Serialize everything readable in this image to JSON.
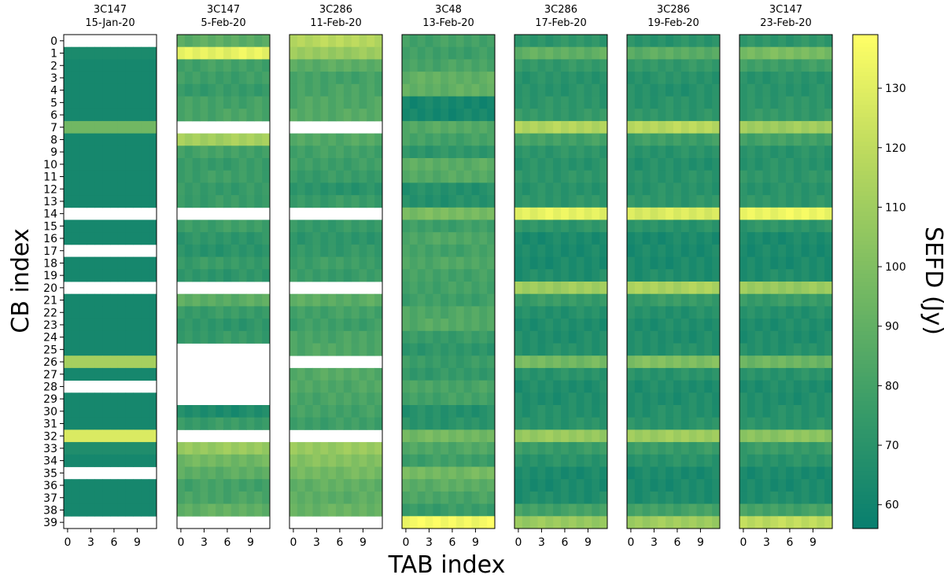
{
  "chart_data": {
    "type": "heatmap",
    "xlabel": "TAB index",
    "ylabel": "CB index",
    "colorbar_label": "SEFD (Jy)",
    "colorbar_range": [
      56,
      139
    ],
    "colorbar_ticks": [
      60,
      70,
      80,
      90,
      100,
      110,
      120,
      130
    ],
    "x_ticks": [
      0,
      3,
      6,
      9
    ],
    "y_ticks": [
      0,
      1,
      2,
      3,
      4,
      5,
      6,
      7,
      8,
      9,
      10,
      11,
      12,
      13,
      14,
      15,
      16,
      17,
      18,
      19,
      20,
      21,
      22,
      23,
      24,
      25,
      26,
      27,
      28,
      29,
      30,
      31,
      32,
      33,
      34,
      35,
      36,
      37,
      38,
      39
    ],
    "tab_count": 12,
    "cb_count": 40,
    "colormap": [
      "#087f6f",
      "#3a9c68",
      "#78bb62",
      "#b9d85e",
      "#ffff66"
    ],
    "panels": [
      {
        "source": "3C147",
        "date": "15-Jan-20",
        "cb_sefd": [
          null,
          64,
          62,
          62,
          62,
          62,
          62,
          95,
          62,
          62,
          62,
          62,
          62,
          62,
          null,
          62,
          62,
          null,
          62,
          62,
          null,
          62,
          62,
          62,
          62,
          62,
          112,
          62,
          null,
          62,
          62,
          62,
          128,
          66,
          62,
          null,
          62,
          62,
          62,
          null
        ]
      },
      {
        "source": "3C147",
        "date": "5-Feb-20",
        "cb_sefd": [
          88,
          132,
          80,
          78,
          75,
          80,
          82,
          null,
          112,
          80,
          76,
          78,
          75,
          76,
          null,
          78,
          72,
          70,
          76,
          72,
          null,
          88,
          76,
          72,
          75,
          null,
          null,
          null,
          null,
          null,
          65,
          76,
          null,
          108,
          95,
          88,
          80,
          82,
          90,
          null
        ]
      },
      {
        "source": "3C286",
        "date": "11-Feb-20",
        "cb_sefd": [
          118,
          108,
          88,
          80,
          82,
          84,
          86,
          null,
          85,
          80,
          78,
          76,
          70,
          76,
          null,
          75,
          72,
          74,
          78,
          76,
          null,
          88,
          80,
          78,
          82,
          84,
          null,
          86,
          84,
          82,
          80,
          78,
          null,
          108,
          102,
          96,
          90,
          88,
          92,
          null
        ]
      },
      {
        "source": "3C48",
        "date": "13-Feb-20",
        "cb_sefd": [
          80,
          78,
          82,
          90,
          90,
          62,
          62,
          86,
          80,
          72,
          88,
          86,
          68,
          68,
          98,
          78,
          84,
          80,
          84,
          80,
          80,
          78,
          84,
          86,
          76,
          72,
          76,
          74,
          82,
          80,
          68,
          70,
          96,
          84,
          78,
          96,
          88,
          82,
          76,
          136
        ]
      },
      {
        "source": "3C286",
        "date": "17-Feb-20",
        "cb_sefd": [
          72,
          90,
          74,
          70,
          70,
          72,
          74,
          116,
          80,
          72,
          70,
          72,
          70,
          72,
          132,
          72,
          64,
          64,
          64,
          66,
          110,
          76,
          68,
          66,
          66,
          68,
          96,
          70,
          66,
          66,
          68,
          70,
          108,
          76,
          70,
          64,
          64,
          66,
          80,
          108
        ]
      },
      {
        "source": "3C286",
        "date": "19-Feb-20",
        "cb_sefd": [
          70,
          88,
          74,
          70,
          68,
          70,
          72,
          118,
          78,
          70,
          68,
          70,
          70,
          72,
          128,
          70,
          64,
          64,
          64,
          66,
          114,
          76,
          68,
          66,
          66,
          68,
          100,
          70,
          66,
          66,
          68,
          70,
          110,
          76,
          70,
          64,
          64,
          66,
          80,
          110
        ]
      },
      {
        "source": "3C147",
        "date": "23-Feb-20",
        "cb_sefd": [
          72,
          98,
          78,
          70,
          70,
          72,
          74,
          110,
          80,
          70,
          70,
          72,
          70,
          72,
          134,
          72,
          64,
          64,
          64,
          66,
          108,
          76,
          68,
          66,
          66,
          68,
          94,
          70,
          66,
          66,
          68,
          70,
          104,
          76,
          70,
          64,
          64,
          66,
          80,
          120
        ]
      }
    ]
  }
}
